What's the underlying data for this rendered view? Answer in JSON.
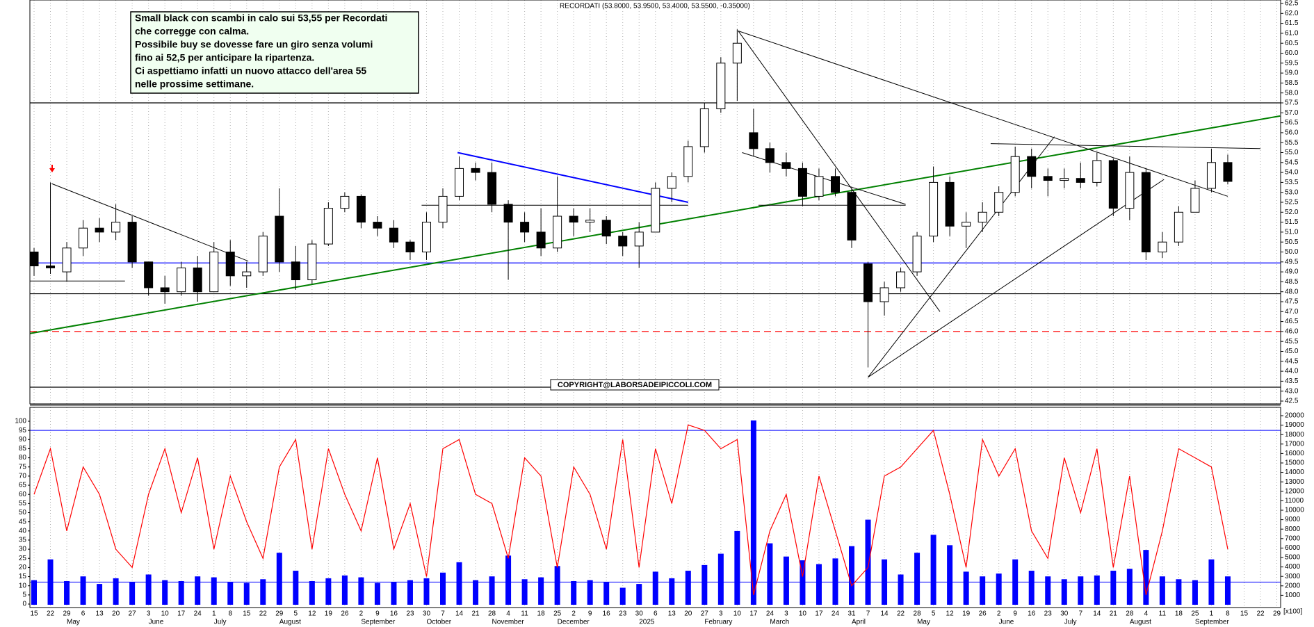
{
  "chart_data": {
    "type": "candlestick",
    "title": "RECORDATI (53.8000, 53.9500, 53.4000, 53.5500, -0.35000)",
    "annotation": [
      "Small black con scambi in calo sui 53,55 per Recordati",
      "che corregge con calma.",
      "Possibile buy se dovesse fare un giro senza volumi",
      "fino ai 52,5 per anticipare la ripartenza.",
      "Ci aspettiamo infatti un nuovo attacco dell'area 55",
      "nelle prossime settimane."
    ],
    "copyright": "COPYRIGHT@LABORSADEIPICCOLI.COM",
    "volume_unit": "[x100]",
    "categories": [
      "15",
      "22",
      "29",
      "6",
      "13",
      "20",
      "27",
      "3",
      "10",
      "17",
      "24",
      "1",
      "8",
      "15",
      "22",
      "29",
      "5",
      "12",
      "19",
      "26",
      "2",
      "9",
      "16",
      "23",
      "30",
      "7",
      "14",
      "21",
      "28",
      "4",
      "11",
      "18",
      "25",
      "2",
      "9",
      "16",
      "23",
      "30",
      "6",
      "13",
      "20",
      "27",
      "3",
      "10",
      "17",
      "24",
      "3",
      "10",
      "17",
      "24",
      "31",
      "7",
      "14",
      "22",
      "28",
      "5",
      "12",
      "19",
      "26",
      "2",
      "9",
      "16",
      "23",
      "30",
      "7",
      "14",
      "21",
      "28",
      "4",
      "11",
      "18",
      "25",
      "1",
      "8",
      "15",
      "22",
      "29"
    ],
    "months": [
      null,
      null,
      "May",
      null,
      null,
      null,
      null,
      "June",
      null,
      null,
      null,
      "July",
      null,
      null,
      null,
      "August",
      null,
      null,
      null,
      null,
      "September",
      null,
      null,
      null,
      "October",
      null,
      null,
      null,
      "November",
      null,
      null,
      null,
      "December",
      null,
      null,
      null,
      null,
      "2025",
      null,
      null,
      null,
      "February",
      null,
      null,
      null,
      "March",
      null,
      null,
      null,
      null,
      "April",
      null,
      null,
      null,
      "May",
      null,
      null,
      null,
      null,
      "June",
      null,
      null,
      null,
      "July",
      null,
      null,
      null,
      "August",
      null,
      null,
      null,
      "September",
      null,
      null,
      null,
      null,
      null
    ],
    "open": [
      50,
      49.3,
      49,
      50.2,
      51.2,
      51,
      51.5,
      49.5,
      48.2,
      48,
      49.2,
      48,
      50,
      48.8,
      49,
      51.8,
      49.5,
      48.6,
      50.4,
      52.2,
      52.8,
      51.5,
      51.2,
      50.5,
      50,
      51.5,
      52.8,
      54.2,
      54,
      52.4,
      51.5,
      51,
      50.2,
      51.8,
      51.5,
      51.6,
      50.8,
      50.3,
      51,
      53.2,
      53.8,
      55.3,
      57.2,
      59.5,
      56,
      55.2,
      54.5,
      54.2,
      52.8,
      53.8,
      53,
      49.4,
      47.5,
      48.2,
      49,
      50.8,
      53.5,
      51.3,
      51.5,
      52,
      53,
      54.8,
      53.8,
      53.6,
      53.7,
      53.5,
      54.6,
      52.2,
      54,
      50,
      50.5,
      52,
      53.2,
      54.5,
      null,
      null,
      null
    ],
    "high": [
      50.2,
      53.5,
      50.5,
      51.6,
      51.7,
      52.4,
      51.8,
      49.5,
      48.8,
      49.5,
      49.8,
      50.5,
      50.6,
      49.5,
      51,
      53.2,
      50.3,
      50.6,
      52.5,
      53,
      52.9,
      51.8,
      51.6,
      50.6,
      52,
      53.2,
      54.8,
      54.5,
      54.5,
      52.6,
      52,
      52.2,
      53.8,
      52.2,
      52.2,
      51.8,
      51,
      51.5,
      53.5,
      54,
      55.6,
      57.5,
      59.8,
      61.2,
      57.2,
      55.5,
      55,
      54.5,
      54.2,
      54.2,
      53.2,
      49.5,
      48.5,
      49.2,
      51,
      54.3,
      53.8,
      52,
      52.5,
      53.3,
      55.3,
      55.2,
      54.2,
      54.2,
      54.5,
      55,
      54.7,
      54.8,
      54.2,
      51,
      52.3,
      53.6,
      55.2,
      54.9,
      null,
      null,
      null
    ],
    "low": [
      48.8,
      48.9,
      48.5,
      49.8,
      50.5,
      50.6,
      49.2,
      47.8,
      47.4,
      47.8,
      47.5,
      48,
      48.3,
      48.2,
      48.8,
      49,
      48.1,
      48.4,
      50.3,
      52,
      51.2,
      50.8,
      50.2,
      49.6,
      49.6,
      51.2,
      52.6,
      53.6,
      52,
      48.6,
      50.5,
      49.8,
      50,
      50.8,
      51,
      50.4,
      49.8,
      49.2,
      51,
      52.5,
      53.5,
      55,
      57,
      57.6,
      54.8,
      54,
      53.8,
      52.3,
      52.6,
      52.8,
      50.2,
      44.2,
      46.8,
      48,
      48.8,
      50.5,
      50.8,
      50.2,
      51,
      51.8,
      52.8,
      53.2,
      52.8,
      53.2,
      53.2,
      53.3,
      51.8,
      51.6,
      49.6,
      49.7,
      50.3,
      52,
      53,
      53.4,
      null,
      null,
      null
    ],
    "close": [
      49.3,
      49.2,
      50.2,
      51.2,
      51,
      51.5,
      49.5,
      48.2,
      48,
      49.2,
      48,
      50,
      48.8,
      49,
      50.8,
      49.5,
      48.6,
      50.4,
      52.2,
      52.8,
      51.5,
      51.2,
      50.5,
      50,
      51.5,
      52.8,
      54.2,
      54,
      52.4,
      51.5,
      51,
      50.2,
      51.8,
      51.5,
      51.6,
      50.8,
      50.3,
      51,
      53.2,
      53.8,
      55.3,
      57.2,
      59.5,
      60.5,
      55.2,
      54.5,
      54.2,
      52.8,
      53.8,
      53,
      50.6,
      47.5,
      48.2,
      49,
      50.8,
      53.5,
      51.3,
      51.5,
      52,
      53,
      54.8,
      53.8,
      53.6,
      53.7,
      53.5,
      54.6,
      52.2,
      54,
      50,
      50.5,
      52,
      53.2,
      54.5,
      53.55,
      null,
      null,
      null
    ],
    "oscillator": {
      "color": "#ff0000",
      "values": [
        60,
        85,
        40,
        75,
        60,
        30,
        20,
        60,
        85,
        50,
        80,
        30,
        70,
        45,
        25,
        75,
        90,
        30,
        85,
        60,
        40,
        80,
        30,
        55,
        15,
        85,
        90,
        60,
        55,
        25,
        80,
        70,
        20,
        75,
        60,
        30,
        90,
        20,
        85,
        55,
        98,
        95,
        85,
        90,
        5,
        40,
        60,
        15,
        70,
        40,
        10,
        20,
        70,
        75,
        85,
        95,
        60,
        20,
        90,
        70,
        85,
        40,
        25,
        80,
        50,
        85,
        20,
        70,
        5,
        40,
        85,
        80,
        75,
        30,
        null,
        null,
        null
      ]
    },
    "volume": {
      "color": "#0000ff",
      "values": [
        2600,
        4800,
        2500,
        3000,
        2200,
        2800,
        2400,
        3200,
        2600,
        2500,
        3000,
        2900,
        2400,
        2300,
        2700,
        5500,
        3600,
        2500,
        2800,
        3100,
        2900,
        2300,
        2400,
        2600,
        2800,
        3400,
        4500,
        2600,
        3000,
        5200,
        2700,
        2900,
        4100,
        2500,
        2600,
        2400,
        1800,
        2200,
        3500,
        2800,
        3600,
        4200,
        5400,
        7800,
        19500,
        6500,
        5100,
        4700,
        4300,
        4900,
        6200,
        9000,
        4800,
        3200,
        5500,
        7400,
        6300,
        3500,
        3000,
        3300,
        4800,
        3600,
        3000,
        2700,
        3000,
        3100,
        3600,
        3800,
        5800,
        3000,
        2700,
        2600,
        4800,
        3000,
        null,
        null,
        null
      ]
    },
    "volume_average": 2400,
    "oscillator_level": 95,
    "ylim": [
      42.5,
      62.5
    ],
    "yticks": [
      42.5,
      {
        "value": 43,
        "label": "43.0"
      },
      43.5,
      {
        "value": 44,
        "label": "44.0"
      },
      44.5,
      {
        "value": 45,
        "label": "45.0"
      },
      45.5,
      {
        "value": 46,
        "label": "46.0"
      },
      46.5,
      {
        "value": 47,
        "label": "47.0"
      },
      47.5,
      {
        "value": 48,
        "label": "48.0"
      },
      48.5,
      {
        "value": 49,
        "label": "49.0"
      },
      49.5,
      {
        "value": 50,
        "label": "50.0"
      },
      50.5,
      {
        "value": 51,
        "label": "51.0"
      },
      51.5,
      {
        "value": 52,
        "label": "52.0"
      },
      52.5,
      {
        "value": 53,
        "label": "53.0"
      },
      53.5,
      {
        "value": 54,
        "label": "54.0"
      },
      54.5,
      {
        "value": 55,
        "label": "55.0"
      },
      55.5,
      {
        "value": 56,
        "label": "56.0"
      },
      56.5,
      {
        "value": 57,
        "label": "57.0"
      },
      57.5,
      {
        "value": 58,
        "label": "58.0"
      },
      58.5,
      {
        "value": 59,
        "label": "59.0"
      },
      59.5,
      {
        "value": 60,
        "label": "60.0"
      },
      60.5,
      {
        "value": 61,
        "label": "61.0"
      },
      61.5,
      {
        "value": 62,
        "label": "62.0"
      },
      62.5
    ],
    "osc_lim": [
      0,
      100
    ],
    "osc_ticks": [
      0,
      5,
      10,
      15,
      20,
      25,
      30,
      35,
      40,
      45,
      50,
      55,
      60,
      65,
      70,
      75,
      80,
      85,
      90,
      95,
      100
    ],
    "vol_lim": [
      0,
      20000
    ],
    "vol_ticks": [
      1000,
      2000,
      3000,
      4000,
      5000,
      6000,
      7000,
      8000,
      9000,
      10000,
      11000,
      12000,
      13000,
      14000,
      15000,
      16000,
      17000,
      18000,
      19000,
      20000
    ],
    "grid": true,
    "levels": [
      {
        "value": 57.5,
        "color": "#000000",
        "style": "solid"
      },
      {
        "value": 49.45,
        "color": "#0000ff",
        "style": "solid"
      },
      {
        "value": 47.9,
        "color": "#000000",
        "style": "solid"
      },
      {
        "value": 46,
        "color": "#ff0000",
        "style": "dashed"
      },
      {
        "value": 43.2,
        "color": "#000000",
        "style": "solid"
      },
      {
        "value": 42.3,
        "color": "#000000",
        "style": "solid"
      }
    ],
    "trendlines": [
      {
        "from": [
          -0.26,
          45.9
        ],
        "to": [
          76.2,
          56.84
        ],
        "color": "#008000"
      },
      {
        "from": [
          1.07,
          53.44
        ],
        "to": [
          13.1,
          49.54
        ],
        "color": "#000000"
      },
      {
        "from": [
          -0.26,
          48.54
        ],
        "to": [
          5.56,
          48.54
        ],
        "color": "#000000"
      },
      {
        "from": [
          25.9,
          55
        ],
        "to": [
          40,
          52.5
        ],
        "color": "#0000ff"
      },
      {
        "from": [
          23.7,
          52.35
        ],
        "to": [
          40,
          52.35
        ],
        "color": "#000000"
      },
      {
        "from": [
          43.06,
          61.12
        ],
        "to": [
          55.4,
          47
        ],
        "color": "#000000"
      },
      {
        "from": [
          43.06,
          61.12
        ],
        "to": [
          73,
          52.8
        ],
        "color": "#000000"
      },
      {
        "from": [
          43.3,
          55
        ],
        "to": [
          53.3,
          52.4
        ],
        "color": "#000000"
      },
      {
        "from": [
          44.3,
          52.35
        ],
        "to": [
          53.3,
          52.35
        ],
        "color": "#000000"
      },
      {
        "from": [
          51,
          43.7
        ],
        "to": [
          62.4,
          55.8
        ],
        "color": "#000000"
      },
      {
        "from": [
          51,
          43.7
        ],
        "to": [
          69.1,
          53.65
        ],
        "color": "#000000"
      },
      {
        "from": [
          58.5,
          55.45
        ],
        "to": [
          75,
          55.2
        ],
        "color": "#000000"
      }
    ]
  }
}
